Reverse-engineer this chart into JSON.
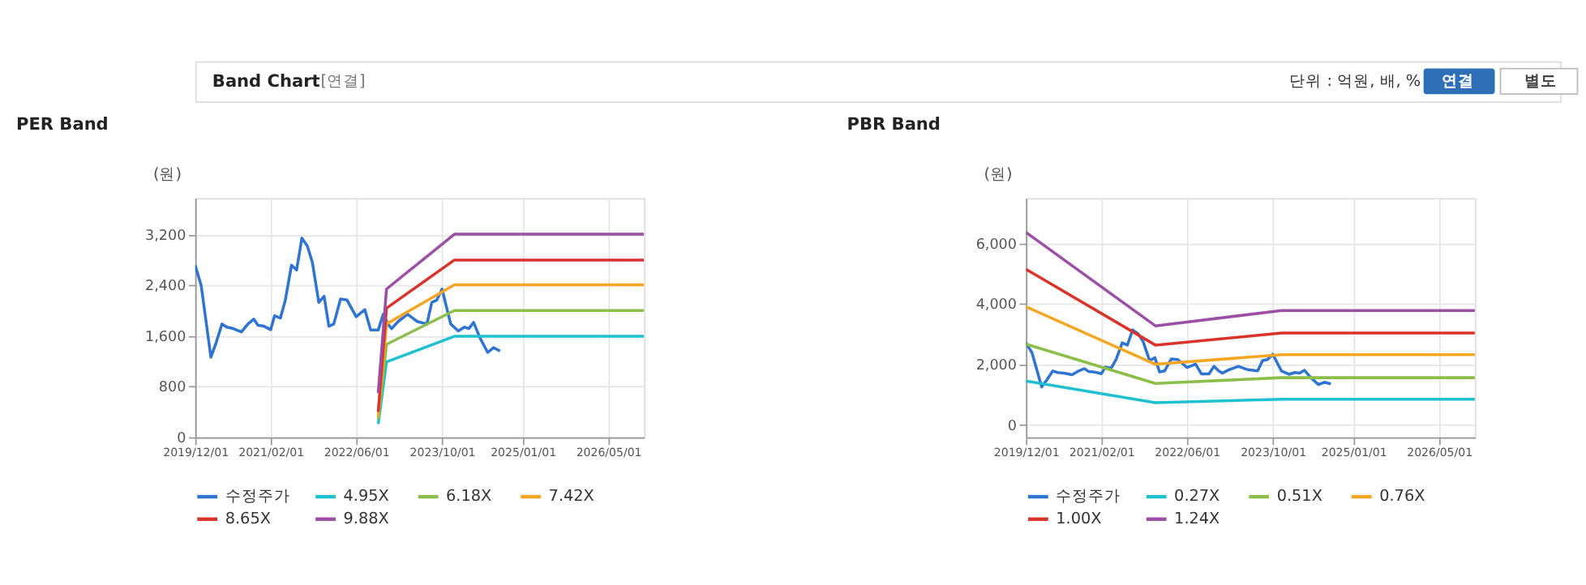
{
  "chart_data": [
    {
      "type": "line",
      "title": "PER Band",
      "ylabel": "(원)",
      "annotations": [
        "Band Chart",
        "[연결]",
        "단위 : 억원, 배, %",
        "연결",
        "별도"
      ],
      "xlim": [
        "2019-12-01",
        "2026-11-20"
      ],
      "xticks": [
        {
          "value": "2019-12-01",
          "label": "2019/12/01"
        },
        {
          "value": "2021-02-01",
          "label": "2021/02/01"
        },
        {
          "value": "2022-06-01",
          "label": "2022/06/01"
        },
        {
          "value": "2023-10-01",
          "label": "2023/10/01"
        },
        {
          "value": "2025-01-01",
          "label": "2025/01/01"
        },
        {
          "value": "2026-05-01",
          "label": "2026/05/01"
        }
      ],
      "ylim": [
        0,
        3780
      ],
      "yticks": [
        0,
        800,
        {
          "value": 1600,
          "label": "1,600"
        },
        {
          "value": 2400,
          "label": "2,400"
        },
        {
          "value": 3200,
          "label": "3,200"
        }
      ],
      "grid": true,
      "legend": "bottom",
      "marker": "none",
      "line_style": "solid",
      "series": [
        {
          "name": "수정주가",
          "color": "#2f74d0",
          "x": [
            "2019-12-01",
            "2020-01-04",
            "2020-02-28",
            "2020-03-28",
            "2020-05-01",
            "2020-05-28",
            "2020-07-04",
            "2020-08-19",
            "2020-09-25",
            "2020-10-28",
            "2020-11-21",
            "2020-12-25",
            "2021-02-01",
            "2021-02-23",
            "2021-03-28",
            "2021-04-25",
            "2021-05-30",
            "2021-06-28",
            "2021-07-28",
            "2021-08-28",
            "2021-09-25",
            "2021-11-01",
            "2021-12-01",
            "2021-12-28",
            "2022-01-25",
            "2022-03-04",
            "2022-04-10",
            "2022-06-01",
            "2022-07-20",
            "2022-08-22",
            "2022-10-04",
            "2022-11-01",
            "2022-11-28",
            "2022-12-19",
            "2023-01-25",
            "2023-03-20",
            "2023-05-13",
            "2023-07-07",
            "2023-08-04",
            "2023-09-01",
            "2023-10-01",
            "2023-11-19",
            "2024-01-01",
            "2024-02-04",
            "2024-03-01",
            "2024-03-28",
            "2024-05-04",
            "2024-06-16",
            "2024-07-19",
            "2024-08-25"
          ],
          "values": [
            2718,
            2395,
            1265,
            1490,
            1790,
            1740,
            1717,
            1664,
            1790,
            1867,
            1770,
            1755,
            1700,
            1920,
            1882,
            2168,
            2718,
            2643,
            3147,
            3020,
            2771,
            2131,
            2229,
            1755,
            1790,
            2184,
            2168,
            1905,
            2018,
            1694,
            1694,
            1943,
            1790,
            1717,
            1830,
            1943,
            1830,
            1790,
            2131,
            2168,
            2342,
            1790,
            1679,
            1740,
            1717,
            1815,
            1566,
            1340,
            1416,
            1363
          ]
        },
        {
          "name": "4.95X",
          "color": "#1fc1d0",
          "x": [
            "2022-10-04",
            "2022-11-20",
            "2023-12-10",
            "2026-11-20"
          ],
          "values": [
            211,
            1190,
            1596,
            1596
          ]
        },
        {
          "name": "6.18X",
          "color": "#8bbf4a",
          "x": [
            "2022-10-04",
            "2022-11-20",
            "2023-12-10",
            "2026-11-20"
          ],
          "values": [
            286,
            1468,
            2003,
            2003
          ]
        },
        {
          "name": "7.42X",
          "color": "#f5a623",
          "x": [
            "2022-10-04",
            "2022-11-20",
            "2023-12-10",
            "2026-11-20"
          ],
          "values": [
            324,
            1790,
            2410,
            2410
          ]
        },
        {
          "name": "8.65X",
          "color": "#d9342b",
          "x": [
            "2022-10-04",
            "2022-11-20",
            "2023-12-10",
            "2026-11-20"
          ],
          "values": [
            400,
            2040,
            2801,
            2801
          ]
        },
        {
          "name": "9.88X",
          "color": "#9b4fa5",
          "x": [
            "2022-10-04",
            "2022-11-20",
            "2023-12-10",
            "2026-11-20"
          ],
          "values": [
            700,
            2342,
            3208,
            3208
          ]
        }
      ]
    },
    {
      "type": "line",
      "title": "PBR Band",
      "ylabel": "(원)",
      "xlim": [
        "2019-12-01",
        "2026-11-20"
      ],
      "xticks": [
        {
          "value": "2019-12-01",
          "label": "2019/12/01"
        },
        {
          "value": "2021-02-01",
          "label": "2021/02/01"
        },
        {
          "value": "2022-06-01",
          "label": "2022/06/01"
        },
        {
          "value": "2023-10-01",
          "label": "2023/10/01"
        },
        {
          "value": "2025-01-01",
          "label": "2025/01/01"
        },
        {
          "value": "2026-05-01",
          "label": "2026/05/01"
        }
      ],
      "ylim": [
        -400,
        7500
      ],
      "yticks": [
        0,
        {
          "value": 2000,
          "label": "2,000"
        },
        {
          "value": 4000,
          "label": "4,000"
        },
        {
          "value": 6000,
          "label": "6,000"
        }
      ],
      "grid": true,
      "legend": "bottom",
      "marker": "none",
      "line_style": "solid",
      "series": [
        {
          "name": "수정주가",
          "color": "#2f74d0",
          "x": [
            "2019-12-01",
            "2020-01-04",
            "2020-02-28",
            "2020-03-28",
            "2020-05-01",
            "2020-05-28",
            "2020-07-04",
            "2020-08-19",
            "2020-09-25",
            "2020-10-28",
            "2020-11-21",
            "2020-12-25",
            "2021-02-01",
            "2021-02-23",
            "2021-03-28",
            "2021-04-25",
            "2021-05-30",
            "2021-06-28",
            "2021-07-28",
            "2021-08-28",
            "2021-09-25",
            "2021-11-01",
            "2021-12-01",
            "2021-12-28",
            "2022-01-25",
            "2022-03-04",
            "2022-04-10",
            "2022-06-01",
            "2022-07-20",
            "2022-08-22",
            "2022-10-04",
            "2022-11-01",
            "2022-11-28",
            "2022-12-19",
            "2023-01-25",
            "2023-03-20",
            "2023-05-13",
            "2023-07-07",
            "2023-08-04",
            "2023-09-01",
            "2023-10-01",
            "2023-11-19",
            "2024-01-01",
            "2024-02-04",
            "2024-03-01",
            "2024-03-28",
            "2024-05-04",
            "2024-06-16",
            "2024-07-19",
            "2024-08-25"
          ],
          "values": [
            2718,
            2395,
            1265,
            1490,
            1790,
            1740,
            1717,
            1664,
            1790,
            1867,
            1770,
            1755,
            1700,
            1920,
            1882,
            2168,
            2718,
            2643,
            3147,
            3020,
            2771,
            2131,
            2229,
            1755,
            1790,
            2184,
            2168,
            1905,
            2018,
            1694,
            1694,
            1943,
            1790,
            1717,
            1830,
            1943,
            1830,
            1790,
            2131,
            2168,
            2342,
            1790,
            1679,
            1740,
            1717,
            1815,
            1566,
            1340,
            1416,
            1363
          ]
        },
        {
          "name": "0.27X",
          "color": "#1fc1d0",
          "x": [
            "2019-12-01",
            "2021-12-04",
            "2023-11-20",
            "2026-11-20"
          ],
          "values": [
            1457,
            744,
            855,
            855
          ]
        },
        {
          "name": "0.51X",
          "color": "#8bbf4a",
          "x": [
            "2019-12-01",
            "2021-12-04",
            "2023-11-20",
            "2026-11-20"
          ],
          "values": [
            2677,
            1378,
            1568,
            1568
          ]
        },
        {
          "name": "0.76X",
          "color": "#f5a623",
          "x": [
            "2019-12-01",
            "2021-12-04",
            "2023-11-20",
            "2026-11-20"
          ],
          "values": [
            3912,
            2012,
            2328,
            2328
          ]
        },
        {
          "name": "1.00X",
          "color": "#d9342b",
          "x": [
            "2019-12-01",
            "2021-12-04",
            "2023-11-20",
            "2026-11-20"
          ],
          "values": [
            5148,
            2645,
            3041,
            3041
          ]
        },
        {
          "name": "1.24X",
          "color": "#9b4fa5",
          "x": [
            "2019-12-01",
            "2021-12-04",
            "2023-11-20",
            "2026-11-20"
          ],
          "values": [
            6368,
            3279,
            3786,
            3786
          ]
        }
      ]
    }
  ]
}
